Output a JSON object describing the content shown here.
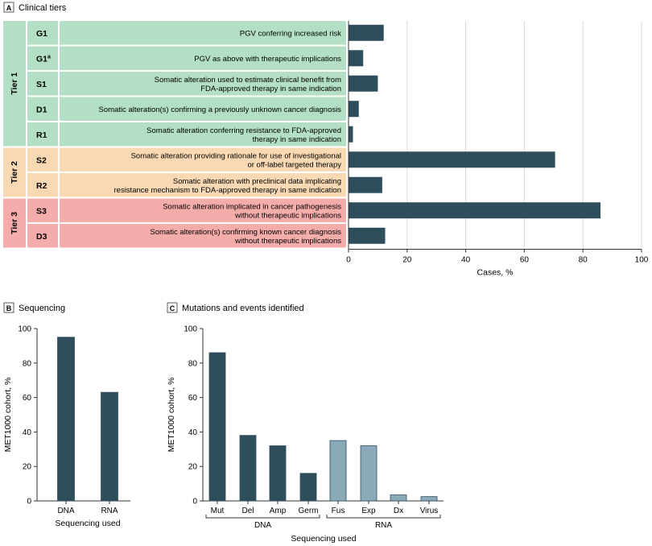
{
  "colors": {
    "bar_dark": "#2e4e5c",
    "bar_light": "#8aa9b9",
    "tier1": "#b3dfc6",
    "tier2": "#f8d9b3",
    "tier3": "#f4adab",
    "grid": "#d9d9d9",
    "axis": "#333333",
    "text": "#1a1a1a"
  },
  "chart_data": [
    {
      "panel": "A",
      "title": "Clinical tiers",
      "type": "bar",
      "orientation": "horizontal",
      "xlabel": "Cases, %",
      "xlim": [
        0,
        100
      ],
      "xticks": [
        0,
        20,
        40,
        60,
        80,
        100
      ],
      "grid": true,
      "tiers": [
        {
          "label": "Tier 1",
          "color_key": "tier1",
          "rows": [
            {
              "code": "G1",
              "sup": "",
              "desc": [
                "PGV conferring increased risk"
              ],
              "value": 12
            },
            {
              "code": "G1",
              "sup": "a",
              "desc": [
                "PGV as above with therapeutic implications"
              ],
              "value": 5
            },
            {
              "code": "S1",
              "sup": "",
              "desc": [
                "Somatic alteration used to estimate clinical benefit from",
                "FDA-approved therapy in same indication"
              ],
              "value": 10
            },
            {
              "code": "D1",
              "sup": "",
              "desc": [
                "Somatic alteration(s) confirming a previously unknown cancer diagnosis"
              ],
              "value": 3.5
            },
            {
              "code": "R1",
              "sup": "",
              "desc": [
                "Somatic alteration conferring resistance to FDA-approved",
                "therapy in same indication"
              ],
              "value": 1.5
            }
          ]
        },
        {
          "label": "Tier 2",
          "color_key": "tier2",
          "rows": [
            {
              "code": "S2",
              "sup": "",
              "desc": [
                "Somatic alteration providing rationale for use of investigational",
                "or off-label targeted therapy"
              ],
              "value": 70.5
            },
            {
              "code": "R2",
              "sup": "",
              "desc": [
                "Somatic alteration with preclinical data implicating",
                "resistance mechanism to FDA-approved therapy in same indication"
              ],
              "value": 11.5
            }
          ]
        },
        {
          "label": "Tier 3",
          "color_key": "tier3",
          "rows": [
            {
              "code": "S3",
              "sup": "",
              "desc": [
                "Somatic alteration implicated in cancer pathogenesis",
                "without therapeutic implications"
              ],
              "value": 86
            },
            {
              "code": "D3",
              "sup": "",
              "desc": [
                "Somatic alteration(s) confirming known cancer diagnosis",
                "without therapeutic implications"
              ],
              "value": 12.5
            }
          ]
        }
      ]
    },
    {
      "panel": "B",
      "title": "Sequencing",
      "type": "bar",
      "categories": [
        "DNA",
        "RNA"
      ],
      "values": [
        95,
        63
      ],
      "xlabel": "Sequencing used",
      "ylabel": "MET1000 cohort, %",
      "ylim": [
        0,
        100
      ],
      "yticks": [
        0,
        20,
        40,
        60,
        80,
        100
      ],
      "grid": false
    },
    {
      "panel": "C",
      "title": "Mutations and events identified",
      "type": "bar",
      "categories": [
        "Mut",
        "Del",
        "Amp",
        "Germ",
        "Fus",
        "Exp",
        "Dx",
        "Virus"
      ],
      "values": [
        86,
        38,
        32,
        16,
        35,
        32,
        3.5,
        2.5
      ],
      "groups": [
        {
          "label": "DNA",
          "categories": [
            "Mut",
            "Del",
            "Amp",
            "Germ"
          ],
          "color_key": "bar_dark"
        },
        {
          "label": "RNA",
          "categories": [
            "Fus",
            "Exp",
            "Dx",
            "Virus"
          ],
          "color_key": "bar_light"
        }
      ],
      "xlabel": "Sequencing used",
      "ylabel": "MET1000 cohort, %",
      "ylim": [
        0,
        100
      ],
      "yticks": [
        0,
        20,
        40,
        60,
        80,
        100
      ],
      "grid": false
    }
  ]
}
